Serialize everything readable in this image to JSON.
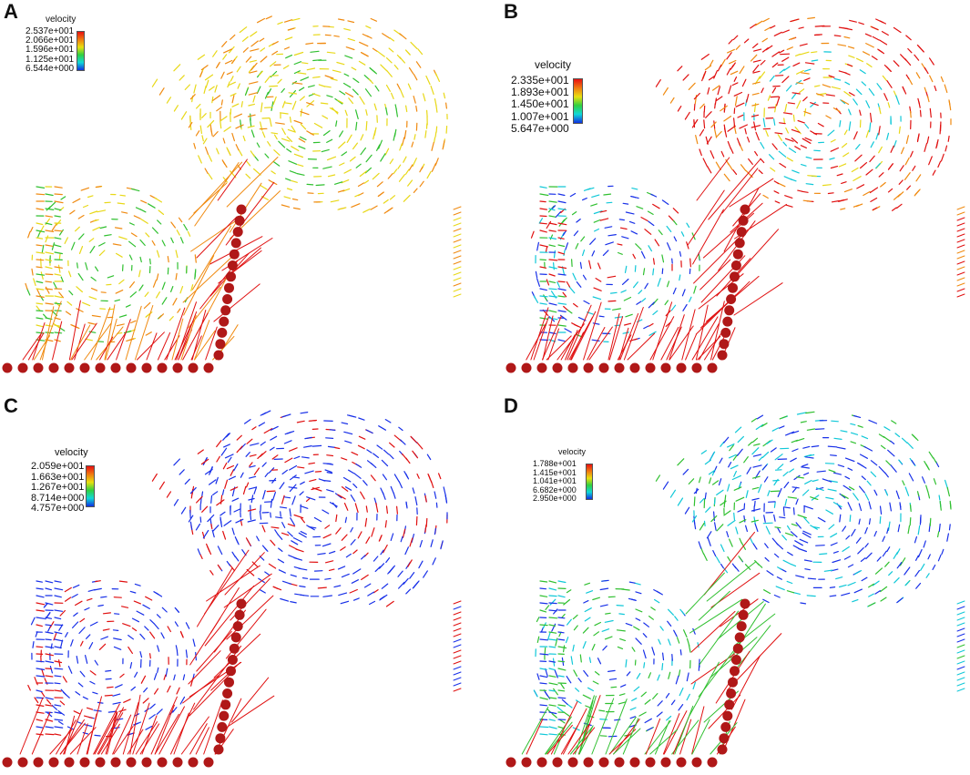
{
  "figure": {
    "panels": [
      {
        "letter": "A",
        "legend": {
          "title": "velocity",
          "ticks": [
            "2.537e+001",
            "2.066e+001",
            "1.596e+001",
            "1.125e+001",
            "6.544e+000"
          ]
        }
      },
      {
        "letter": "B",
        "legend": {
          "title": "velocity",
          "ticks": [
            "2.335e+001",
            "1.893e+001",
            "1.450e+001",
            "1.007e+001",
            "5.647e+000"
          ]
        }
      },
      {
        "letter": "C",
        "legend": {
          "title": "velocity",
          "ticks": [
            "2.059e+001",
            "1.663e+001",
            "1.267e+001",
            "8.714e+000",
            "4.757e+000"
          ]
        }
      },
      {
        "letter": "D",
        "legend": {
          "title": "velocity",
          "ticks": [
            "1.788e+001",
            "1.415e+001",
            "1.041e+001",
            "6.682e+000",
            "2.950e+000"
          ]
        }
      }
    ],
    "colors": {
      "red": "#e01010",
      "orange": "#f08a10",
      "yellow": "#e8d818",
      "green": "#30c030",
      "cyan": "#10c8d8",
      "blue": "#1830e8",
      "particle": "#b01818"
    }
  }
}
